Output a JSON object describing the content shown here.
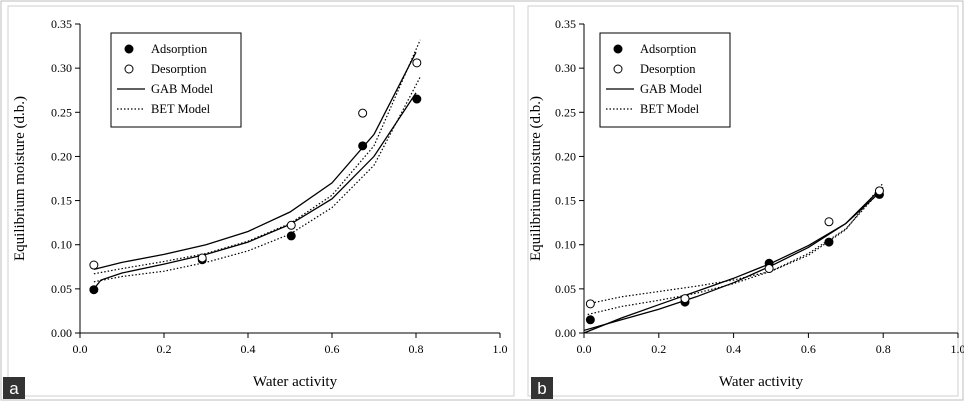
{
  "chart_data": [
    {
      "panel_label": "a",
      "type": "scatter",
      "xlabel": "Water activity",
      "ylabel": "Equilibrium moisture (d.b.)",
      "xlim": [
        0.0,
        1.0
      ],
      "ylim": [
        0.0,
        0.35
      ],
      "x_ticks": [
        "0.0",
        "0.2",
        "0.4",
        "0.6",
        "0.8",
        "1.0"
      ],
      "y_ticks": [
        "0.00",
        "0.05",
        "0.10",
        "0.15",
        "0.20",
        "0.25",
        "0.30",
        "0.35"
      ],
      "legend_position": "top-left",
      "legend": [
        {
          "label": "Adsorption",
          "marker": "filled-circle"
        },
        {
          "label": "Desorption",
          "marker": "open-circle"
        },
        {
          "label": "GAB Model",
          "marker": "solid-line"
        },
        {
          "label": "BET Model",
          "marker": "dotted-line"
        }
      ],
      "series": [
        {
          "name": "Adsorption",
          "kind": "points",
          "x": [
            0.033,
            0.291,
            0.503,
            0.673,
            0.802
          ],
          "y": [
            0.049,
            0.083,
            0.11,
            0.212,
            0.265
          ]
        },
        {
          "name": "Desorption",
          "kind": "points",
          "x": [
            0.033,
            0.291,
            0.503,
            0.673,
            0.802
          ],
          "y": [
            0.077,
            0.085,
            0.122,
            0.249,
            0.306
          ]
        },
        {
          "name": "GAB Model",
          "kind": "solid",
          "x": [
            0.033,
            0.05,
            0.1,
            0.2,
            0.3,
            0.4,
            0.5,
            0.6,
            0.7,
            0.8
          ],
          "y": [
            0.05,
            0.06,
            0.068,
            0.078,
            0.089,
            0.103,
            0.123,
            0.152,
            0.2,
            0.272
          ]
        },
        {
          "name": "GAB Model",
          "kind": "solid",
          "x": [
            0.033,
            0.1,
            0.2,
            0.3,
            0.4,
            0.5,
            0.6,
            0.7,
            0.8
          ],
          "y": [
            0.072,
            0.08,
            0.089,
            0.1,
            0.115,
            0.137,
            0.17,
            0.225,
            0.318
          ]
        },
        {
          "name": "BET Model",
          "kind": "dotted",
          "x": [
            0.033,
            0.1,
            0.2,
            0.3,
            0.4,
            0.5,
            0.6,
            0.7,
            0.81
          ],
          "y": [
            0.058,
            0.064,
            0.07,
            0.08,
            0.093,
            0.112,
            0.142,
            0.19,
            0.29
          ]
        },
        {
          "name": "BET Model",
          "kind": "dotted",
          "x": [
            0.033,
            0.1,
            0.2,
            0.3,
            0.4,
            0.5,
            0.6,
            0.7,
            0.81
          ],
          "y": [
            0.067,
            0.073,
            0.081,
            0.09,
            0.104,
            0.124,
            0.156,
            0.212,
            0.332
          ]
        }
      ]
    },
    {
      "panel_label": "b",
      "type": "scatter",
      "xlabel": "Water activity",
      "ylabel": "Equilibrium moisture (d.b.)",
      "xlim": [
        0.0,
        1.0
      ],
      "ylim": [
        0.0,
        0.35
      ],
      "x_ticks": [
        "0.0",
        "0.2",
        "0.4",
        "0.6",
        "0.8",
        "1.0"
      ],
      "y_ticks": [
        "0.00",
        "0.05",
        "0.10",
        "0.15",
        "0.20",
        "0.25",
        "0.30",
        "0.35"
      ],
      "legend_position": "top-left",
      "legend": [
        {
          "label": "Adsorption",
          "marker": "filled-circle"
        },
        {
          "label": "Desorption",
          "marker": "open-circle"
        },
        {
          "label": "GAB Model",
          "marker": "solid-line"
        },
        {
          "label": "BET Model",
          "marker": "dotted-line"
        }
      ],
      "series": [
        {
          "name": "Adsorption",
          "kind": "points",
          "x": [
            0.017,
            0.27,
            0.495,
            0.655,
            0.79
          ],
          "y": [
            0.015,
            0.035,
            0.079,
            0.103,
            0.157
          ]
        },
        {
          "name": "Desorption",
          "kind": "points",
          "x": [
            0.017,
            0.27,
            0.495,
            0.655,
            0.79
          ],
          "y": [
            0.033,
            0.039,
            0.073,
            0.126,
            0.161
          ]
        },
        {
          "name": "GAB Model",
          "kind": "solid",
          "x": [
            0.0,
            0.1,
            0.2,
            0.3,
            0.4,
            0.5,
            0.6,
            0.7,
            0.79
          ],
          "y": [
            0.0,
            0.017,
            0.032,
            0.047,
            0.062,
            0.079,
            0.099,
            0.124,
            0.159
          ]
        },
        {
          "name": "GAB Model",
          "kind": "solid",
          "x": [
            0.0,
            0.1,
            0.2,
            0.3,
            0.4,
            0.5,
            0.6,
            0.7,
            0.79
          ],
          "y": [
            0.003,
            0.015,
            0.027,
            0.041,
            0.057,
            0.076,
            0.097,
            0.124,
            0.162
          ]
        },
        {
          "name": "BET Model",
          "kind": "dotted",
          "x": [
            0.01,
            0.1,
            0.2,
            0.3,
            0.4,
            0.5,
            0.6,
            0.7,
            0.8
          ],
          "y": [
            0.021,
            0.03,
            0.037,
            0.045,
            0.056,
            0.07,
            0.09,
            0.118,
            0.165
          ]
        },
        {
          "name": "BET Model",
          "kind": "dotted",
          "x": [
            0.01,
            0.1,
            0.2,
            0.3,
            0.4,
            0.5,
            0.6,
            0.7,
            0.8
          ],
          "y": [
            0.033,
            0.041,
            0.047,
            0.053,
            0.06,
            0.07,
            0.088,
            0.117,
            0.17
          ]
        }
      ]
    }
  ]
}
